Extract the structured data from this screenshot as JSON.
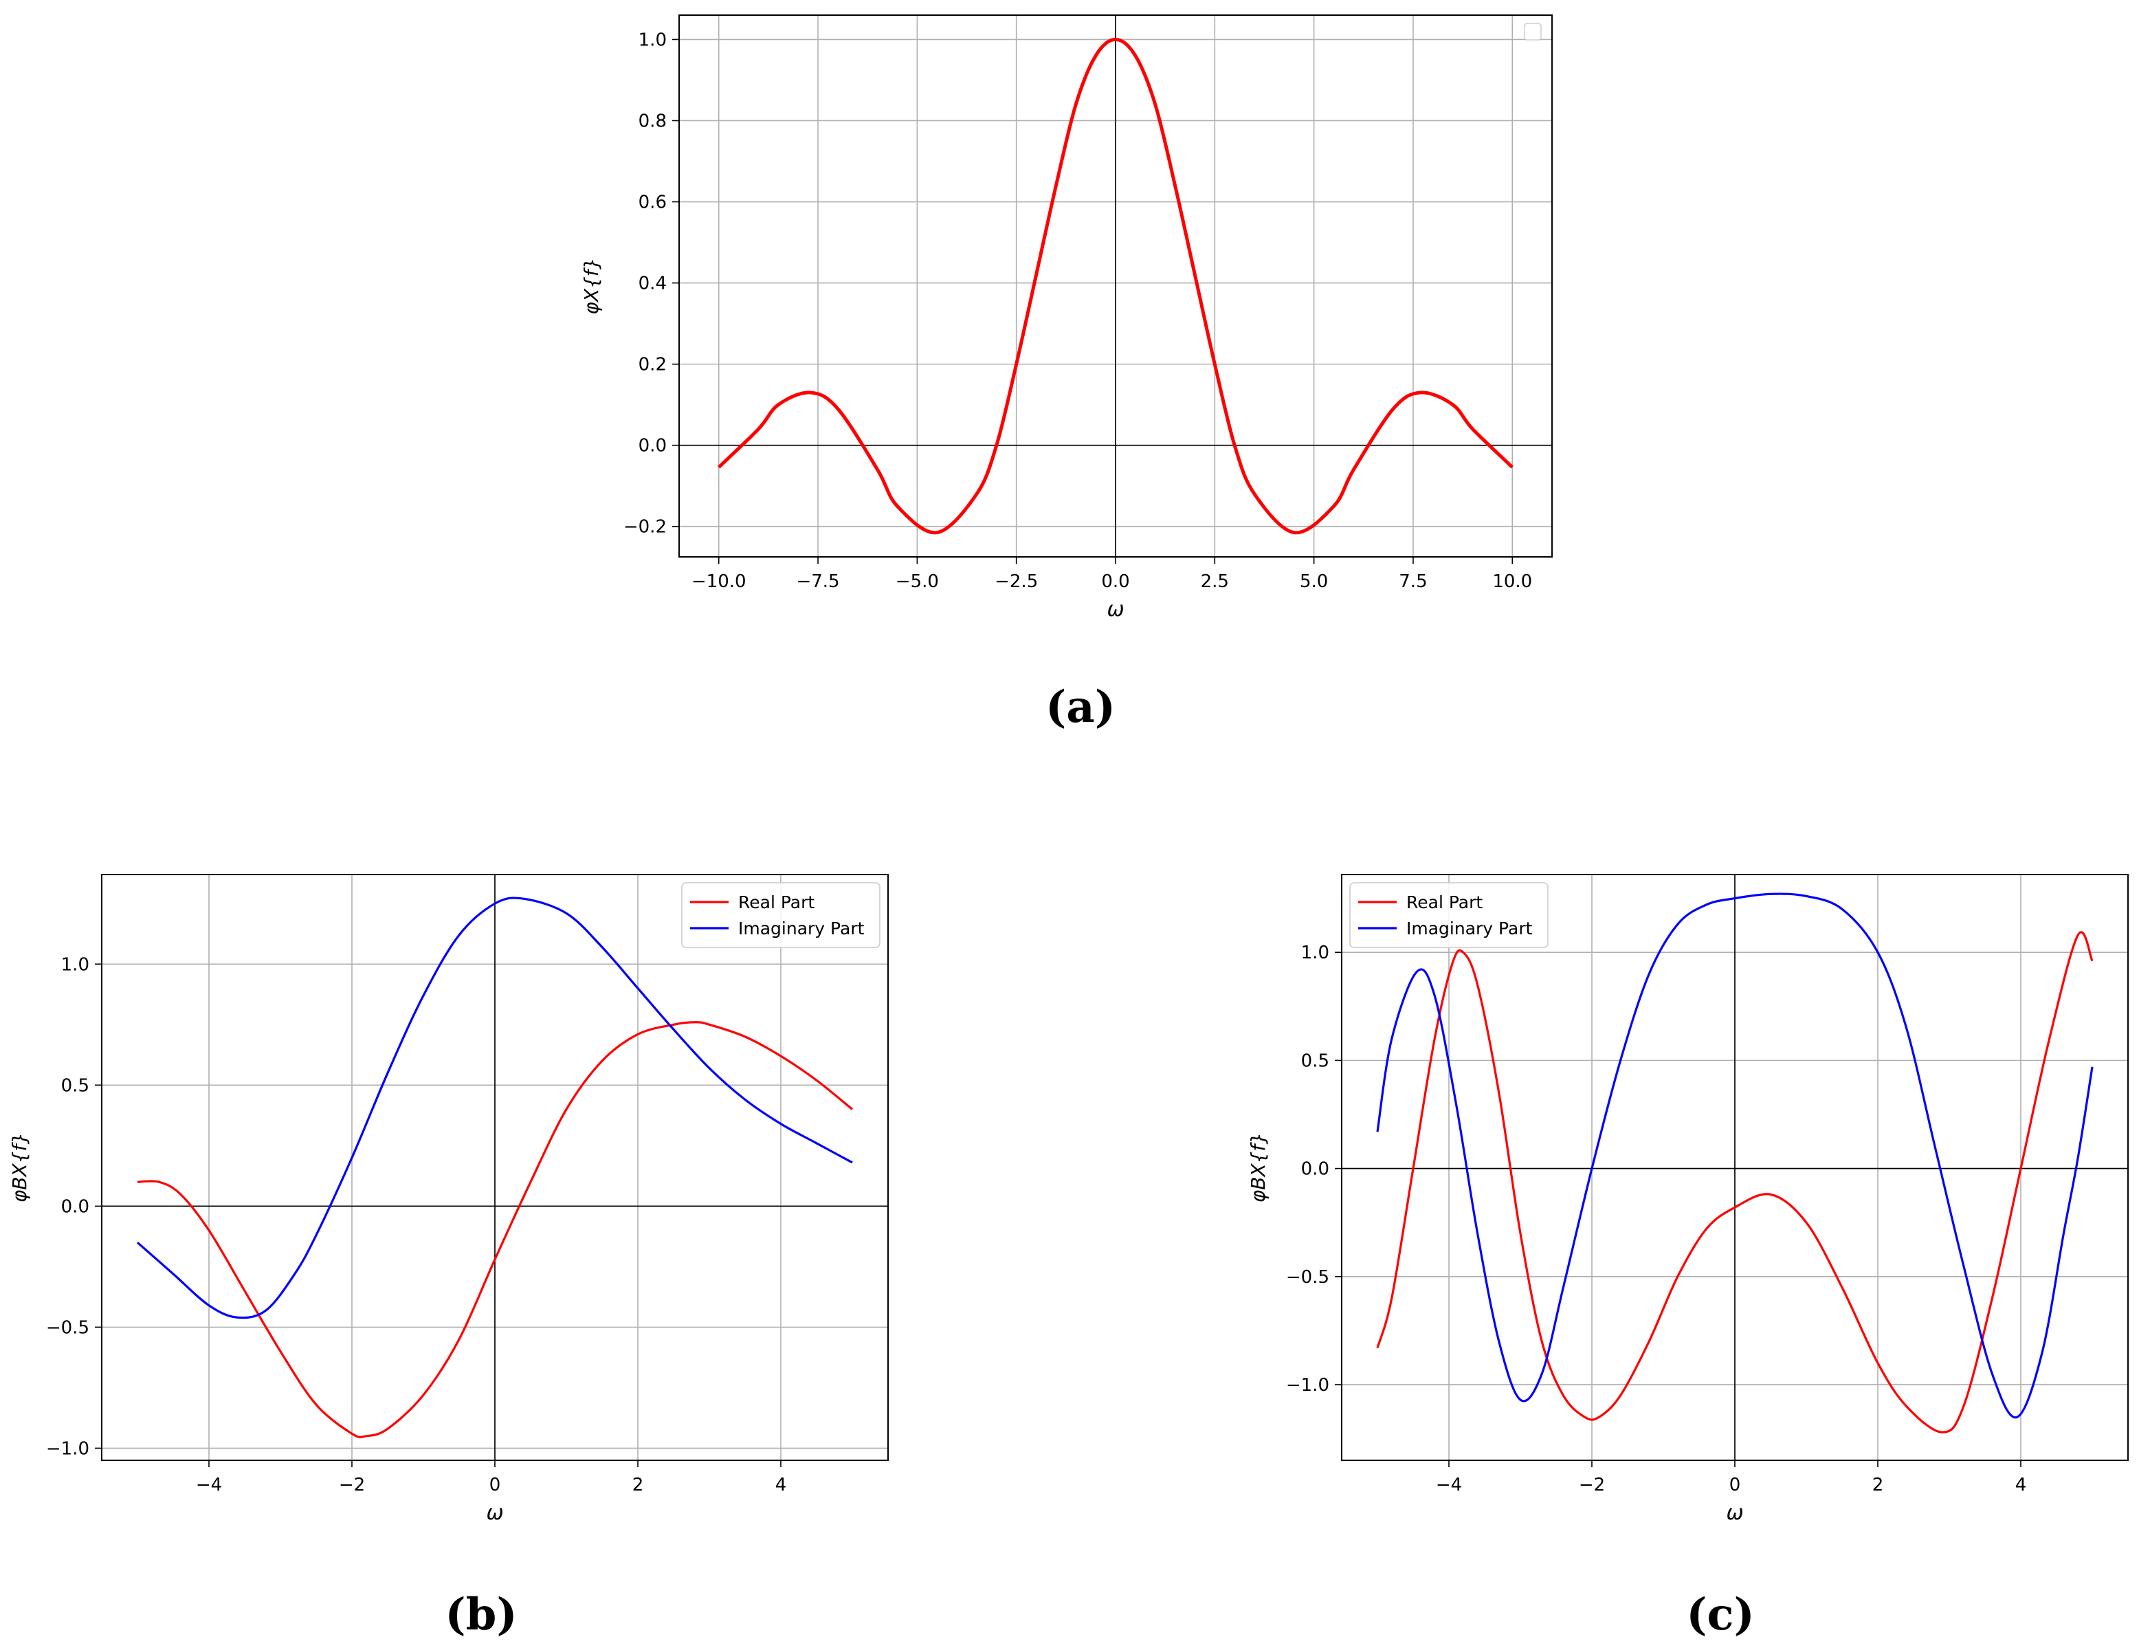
{
  "chart_data": [
    {
      "id": "a",
      "type": "line",
      "panel_label": "(a)",
      "xlabel": "ω",
      "ylabel": "φX{f}",
      "xlim": [
        -11,
        11
      ],
      "ylim": [
        -0.275,
        1.06
      ],
      "x_ticks": [
        -10,
        -7.5,
        -5,
        -2.5,
        0,
        2.5,
        5,
        7.5,
        10
      ],
      "x_tick_labels": [
        "−10.0",
        "−7.5",
        "−5.0",
        "−2.5",
        "0.0",
        "2.5",
        "5.0",
        "7.5",
        "10.0"
      ],
      "y_ticks": [
        -0.2,
        0,
        0.2,
        0.4,
        0.6,
        0.8,
        1.0
      ],
      "y_tick_labels": [
        "−0.2",
        "0.0",
        "0.2",
        "0.4",
        "0.6",
        "0.8",
        "1.0"
      ],
      "grid": true,
      "legend": "top-right (empty)",
      "series": [
        {
          "color": "#ff0000",
          "x": [
            -10,
            -9,
            -8.5,
            -7.7,
            -7,
            -6,
            -5.5,
            -4.5,
            -3.5,
            -3,
            -2.5,
            -2,
            -1.5,
            -1,
            -0.5,
            0,
            0.5,
            1,
            1.5,
            2,
            2.5,
            3,
            3.5,
            4.5,
            5.5,
            6,
            7,
            7.7,
            8.5,
            9,
            10
          ],
          "y": [
            -0.054,
            0.04,
            0.1,
            0.13,
            0.09,
            -0.06,
            -0.15,
            -0.215,
            -0.12,
            0.0,
            0.2,
            0.42,
            0.64,
            0.84,
            0.96,
            1.0,
            0.96,
            0.84,
            0.64,
            0.42,
            0.2,
            0.0,
            -0.12,
            -0.215,
            -0.15,
            -0.06,
            0.09,
            0.13,
            0.1,
            0.04,
            -0.054
          ]
        }
      ]
    },
    {
      "id": "b",
      "type": "line",
      "panel_label": "(b)",
      "xlabel": "ω",
      "ylabel": "φBX{f}",
      "xlim": [
        -5.5,
        5.5
      ],
      "ylim": [
        -1.05,
        1.37
      ],
      "x_ticks": [
        -4,
        -2,
        0,
        2,
        4
      ],
      "x_tick_labels": [
        "−4",
        "−2",
        "0",
        "2",
        "4"
      ],
      "y_ticks": [
        -1.0,
        -0.5,
        0.0,
        0.5,
        1.0
      ],
      "y_tick_labels": [
        "−1.0",
        "−0.5",
        "0.0",
        "0.5",
        "1.0"
      ],
      "grid": true,
      "legend": "top-right",
      "series": [
        {
          "name": "Real Part",
          "color": "#ff0000",
          "x": [
            -5,
            -4.7,
            -4.4,
            -4,
            -3.5,
            -3,
            -2.5,
            -2,
            -1.8,
            -1.5,
            -1,
            -0.5,
            0,
            0.5,
            1,
            1.5,
            2,
            2.5,
            2.8,
            3,
            3.5,
            4,
            4.5,
            5
          ],
          "y": [
            0.1,
            0.1,
            0.05,
            -0.1,
            -0.35,
            -0.6,
            -0.82,
            -0.94,
            -0.95,
            -0.92,
            -0.78,
            -0.55,
            -0.22,
            0.1,
            0.4,
            0.6,
            0.71,
            0.75,
            0.76,
            0.75,
            0.7,
            0.62,
            0.52,
            0.4
          ]
        },
        {
          "name": "Imaginary Part",
          "color": "#0000ff",
          "x": [
            -5,
            -4.5,
            -4,
            -3.6,
            -3.2,
            -2.8,
            -2.5,
            -2,
            -1.5,
            -1,
            -0.5,
            0,
            0.4,
            1,
            1.5,
            2,
            2.5,
            3,
            3.5,
            4,
            4.5,
            5
          ],
          "y": [
            -0.15,
            -0.28,
            -0.41,
            -0.46,
            -0.43,
            -0.28,
            -0.12,
            0.2,
            0.55,
            0.87,
            1.12,
            1.25,
            1.27,
            1.21,
            1.07,
            0.9,
            0.73,
            0.57,
            0.44,
            0.34,
            0.26,
            0.18
          ]
        }
      ]
    },
    {
      "id": "c",
      "type": "line",
      "panel_label": "(c)",
      "xlabel": "ω",
      "ylabel": "φBX{f}",
      "xlim": [
        -5.5,
        5.5
      ],
      "ylim": [
        -1.35,
        1.36
      ],
      "x_ticks": [
        -4,
        -2,
        0,
        2,
        4
      ],
      "x_tick_labels": [
        "−4",
        "−2",
        "0",
        "2",
        "4"
      ],
      "y_ticks": [
        -1.0,
        -0.5,
        0.0,
        0.5,
        1.0
      ],
      "y_tick_labels": [
        "−1.0",
        "−0.5",
        "0.0",
        "0.5",
        "1.0"
      ],
      "grid": true,
      "legend": "top-left",
      "series": [
        {
          "name": "Real Part",
          "color": "#ff0000",
          "x": [
            -5,
            -4.8,
            -4.5,
            -4.2,
            -3.95,
            -3.8,
            -3.6,
            -3.3,
            -3,
            -2.7,
            -2.4,
            -2.1,
            -1.9,
            -1.6,
            -1.2,
            -0.8,
            -0.4,
            0,
            0.5,
            1,
            1.5,
            2,
            2.4,
            2.9,
            3.2,
            3.6,
            4,
            4.4,
            4.8,
            5
          ],
          "y": [
            -0.83,
            -0.6,
            0.0,
            0.6,
            0.95,
            1.0,
            0.85,
            0.35,
            -0.3,
            -0.8,
            -1.05,
            -1.15,
            -1.15,
            -1.05,
            -0.8,
            -0.5,
            -0.28,
            -0.18,
            -0.12,
            -0.25,
            -0.55,
            -0.9,
            -1.1,
            -1.22,
            -1.1,
            -0.6,
            0.0,
            0.6,
            1.08,
            0.96
          ]
        },
        {
          "name": "Imaginary Part",
          "color": "#0000ff",
          "x": [
            -5,
            -4.8,
            -4.45,
            -4.2,
            -3.9,
            -3.6,
            -3.3,
            -3.0,
            -2.7,
            -2.4,
            -2,
            -1.6,
            -1.2,
            -0.8,
            -0.4,
            0,
            0.5,
            1,
            1.5,
            2,
            2.4,
            2.8,
            3.2,
            3.6,
            3.95,
            4.3,
            4.6,
            4.8,
            5
          ],
          "y": [
            0.17,
            0.6,
            0.91,
            0.8,
            0.3,
            -0.3,
            -0.8,
            -1.07,
            -0.95,
            -0.55,
            0.0,
            0.5,
            0.9,
            1.13,
            1.22,
            1.25,
            1.27,
            1.26,
            1.2,
            1.0,
            0.65,
            0.1,
            -0.45,
            -0.95,
            -1.15,
            -0.85,
            -0.3,
            0.05,
            0.47
          ]
        }
      ]
    }
  ]
}
